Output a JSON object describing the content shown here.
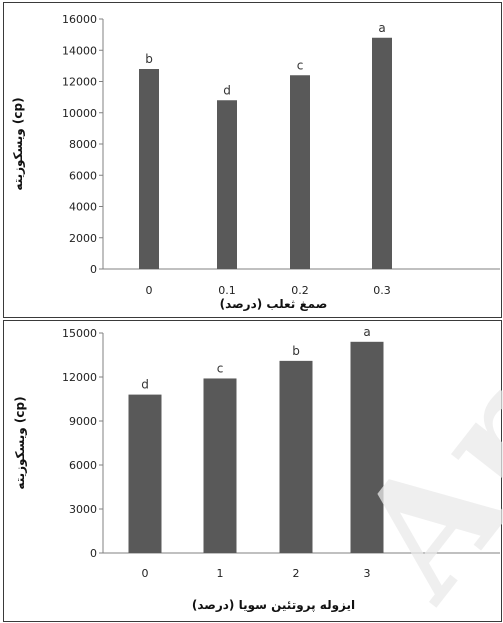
{
  "watermark": "Archive",
  "chart_data": [
    {
      "type": "bar",
      "title": "",
      "xlabel": "صمغ ثعلب (درصد)",
      "ylabel": "ویسکوزیته (cp)",
      "categories": [
        "0",
        "0.1",
        "0.2",
        "0.3"
      ],
      "values": [
        12800,
        10800,
        12400,
        14800
      ],
      "significance": [
        "b",
        "d",
        "c",
        "a"
      ],
      "ylim": [
        0,
        16000
      ],
      "yticks": [
        0,
        2000,
        4000,
        6000,
        8000,
        10000,
        12000,
        14000,
        16000
      ],
      "grid": false,
      "bar_color": "#595959"
    },
    {
      "type": "bar",
      "title": "",
      "xlabel": "ایزوله پروتئین سویا (درصد)",
      "ylabel": "ویسکوزیته (cp)",
      "categories": [
        "0",
        "1",
        "2",
        "3"
      ],
      "values": [
        10800,
        11900,
        13100,
        14400
      ],
      "significance": [
        "d",
        "c",
        "b",
        "a"
      ],
      "ylim": [
        0,
        15000
      ],
      "yticks": [
        0,
        3000,
        6000,
        9000,
        12000,
        15000
      ],
      "grid": false,
      "bar_color": "#595959"
    }
  ]
}
